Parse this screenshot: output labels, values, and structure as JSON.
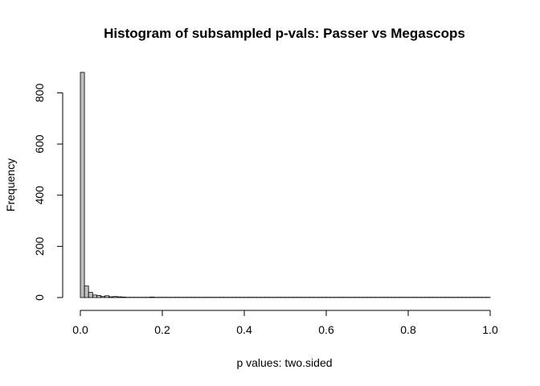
{
  "chart_data": {
    "type": "bar",
    "title": "Histogram of subsampled p-vals: Passer vs Megascops",
    "xlabel": "p values: two.sided",
    "ylabel": "Frequency",
    "xlim": [
      0,
      1
    ],
    "ylim": [
      0,
      880
    ],
    "x_ticks": [
      0.0,
      0.2,
      0.4,
      0.6,
      0.8,
      1.0
    ],
    "x_tick_labels": [
      "0.0",
      "0.2",
      "0.4",
      "0.6",
      "0.8",
      "1.0"
    ],
    "y_ticks": [
      0,
      200,
      400,
      600,
      800
    ],
    "y_tick_labels": [
      "0",
      "200",
      "400",
      "600",
      "800"
    ],
    "bin_width": 0.01,
    "bins_start": 0.0,
    "values": [
      880,
      45,
      20,
      10,
      8,
      4,
      7,
      3,
      4,
      3,
      2,
      1,
      1,
      1,
      1,
      1,
      1,
      2,
      1,
      1,
      1,
      1,
      1,
      1,
      1,
      1,
      1,
      1,
      1,
      1,
      1,
      1,
      1,
      1,
      1,
      1,
      1,
      1,
      1,
      1,
      1,
      1,
      1,
      1,
      1,
      1,
      1,
      1,
      1,
      1,
      1,
      1,
      1,
      1,
      1,
      1,
      1,
      1,
      1,
      1,
      1,
      1,
      1,
      1,
      1,
      1,
      1,
      1,
      1,
      1,
      1,
      1,
      1,
      1,
      1,
      1,
      1,
      1,
      1,
      1,
      1,
      1,
      1,
      1,
      1,
      1,
      1,
      1,
      1,
      1,
      1,
      1,
      1,
      1,
      1,
      1,
      1,
      1,
      1,
      1
    ],
    "bar_color": "#bebebe",
    "grid": false
  }
}
